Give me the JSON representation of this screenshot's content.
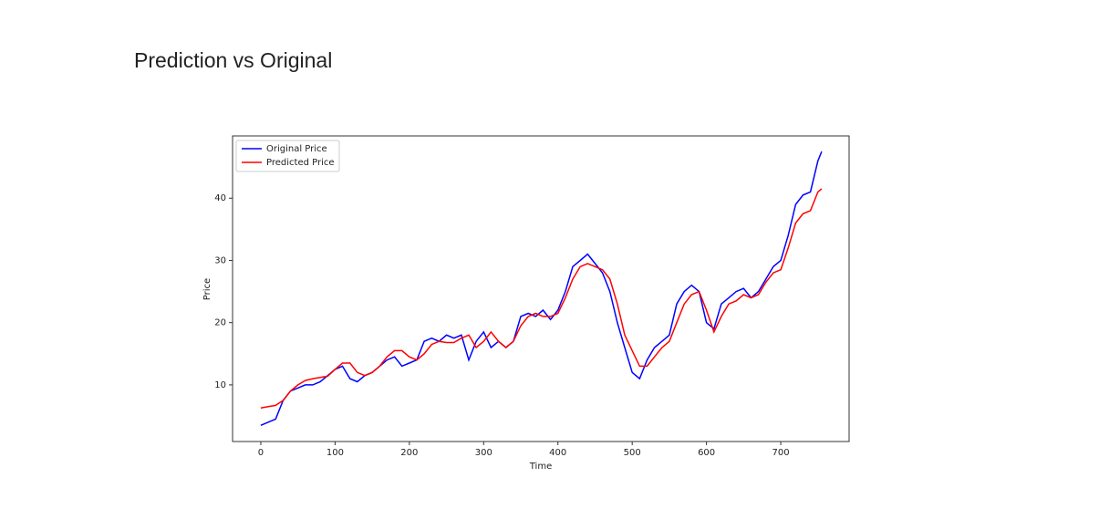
{
  "heading": "Prediction vs Original",
  "chart_data": {
    "type": "line",
    "xlabel": "Time",
    "ylabel": "Price",
    "x": [
      0,
      10,
      20,
      30,
      40,
      50,
      60,
      70,
      80,
      90,
      100,
      110,
      120,
      130,
      140,
      150,
      160,
      170,
      180,
      190,
      200,
      210,
      220,
      230,
      240,
      250,
      260,
      270,
      280,
      290,
      300,
      310,
      320,
      330,
      340,
      350,
      360,
      370,
      380,
      390,
      400,
      410,
      420,
      430,
      440,
      450,
      460,
      470,
      480,
      490,
      500,
      510,
      520,
      530,
      540,
      550,
      560,
      570,
      580,
      590,
      600,
      610,
      620,
      630,
      640,
      650,
      660,
      670,
      680,
      690,
      700,
      710,
      720,
      730,
      740,
      750,
      755
    ],
    "series": [
      {
        "name": "Original Price",
        "color": "#0000ff",
        "values": [
          3.5,
          4,
          4.5,
          7.5,
          9,
          9.5,
          10,
          10,
          10.5,
          11.5,
          12.5,
          13,
          11,
          10.5,
          11.5,
          12,
          13,
          14,
          14.5,
          13,
          13.5,
          14,
          17,
          17.5,
          17,
          18,
          17.5,
          18,
          14,
          17,
          18.5,
          16,
          17,
          16,
          17,
          21,
          21.5,
          21,
          22,
          20.5,
          22,
          25,
          29,
          30,
          31,
          29.5,
          28,
          25,
          20,
          16,
          12,
          11,
          14,
          16,
          17,
          18,
          23,
          25,
          26,
          25,
          20,
          19,
          23,
          24,
          25,
          25.5,
          24,
          25,
          27,
          29,
          30,
          34,
          39,
          40.5,
          41,
          46,
          47.5
        ]
      },
      {
        "name": "Predicted Price",
        "color": "#ff0000",
        "values": [
          6.3,
          6.5,
          6.7,
          7.5,
          9,
          10,
          10.7,
          11,
          11.2,
          11.4,
          12.5,
          13.5,
          13.5,
          12,
          11.5,
          12,
          13,
          14.5,
          15.5,
          15.5,
          14.5,
          14,
          15,
          16.5,
          17,
          16.8,
          16.8,
          17.5,
          18,
          16,
          17,
          18.5,
          17,
          16,
          17,
          19.5,
          21,
          21.5,
          21,
          21,
          21.5,
          24,
          27,
          29,
          29.5,
          29,
          28.5,
          27,
          23,
          18,
          15.5,
          13,
          13,
          14.5,
          16,
          17,
          20,
          23,
          24.5,
          25,
          22,
          18.5,
          21,
          23,
          23.5,
          24.5,
          24,
          24.5,
          26.5,
          28,
          28.5,
          32,
          36,
          37.5,
          38,
          41,
          41.5
        ]
      }
    ],
    "xlim": [
      -38,
      792
    ],
    "ylim": [
      0.9,
      50
    ],
    "xticks": [
      0,
      100,
      200,
      300,
      400,
      500,
      600,
      700
    ],
    "yticks": [
      10,
      20,
      30,
      40
    ],
    "legend": "upper left"
  }
}
